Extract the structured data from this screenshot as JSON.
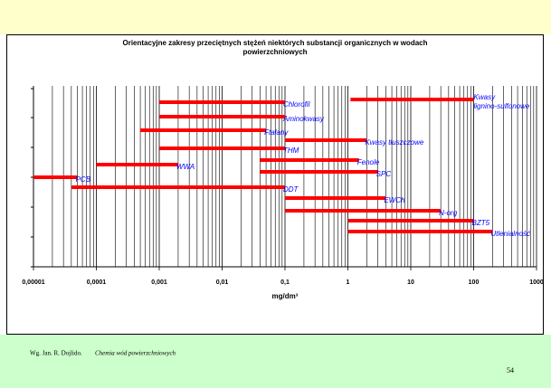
{
  "chart_data": {
    "type": "range-bar",
    "title": "Orientacyjne zakresy przeciętnych stężeń niektórych substancji organicznych w wodach\npowierzchniowych",
    "x_label": "mg/dm³",
    "categories": [
      "Kwasy\nlignino-sulfonowe",
      "Chlorofil",
      "Aminokwasy",
      "Ftalany",
      "Kwasy tłuszczowe",
      "THM",
      "Fenole",
      "WWA",
      "SPC",
      "PCB",
      "DDT",
      "EWCh",
      "N-org",
      "BZT5",
      "Utlenialność"
    ],
    "low": [
      1.1,
      0.001,
      0.001,
      0.0005,
      0.1,
      0.001,
      0.04,
      0.0001,
      0.04,
      1e-05,
      4e-05,
      0.1,
      0.1,
      1,
      1
    ],
    "high": [
      100,
      0.1,
      0.1,
      0.05,
      2,
      0.1,
      1.5,
      0.002,
      3,
      5e-05,
      0.1,
      4,
      30,
      100,
      200
    ],
    "color": "#ff0000",
    "label_color": "#0000ff",
    "xlim": [
      1e-05,
      1000
    ],
    "log_x": true,
    "grid": true,
    "xticks": [
      {
        "value": 1e-05,
        "label": "0,00001"
      },
      {
        "value": 0.0001,
        "label": "0,0001"
      },
      {
        "value": 0.001,
        "label": "0,001"
      },
      {
        "value": 0.01,
        "label": "0,01"
      },
      {
        "value": 0.1,
        "label": "0,1"
      },
      1,
      10,
      100,
      1000
    ]
  },
  "footer": {
    "credit": "Wg. Jan. R. Dojlido.",
    "source": "Chemia wód powierzchniowych",
    "page": 54
  }
}
